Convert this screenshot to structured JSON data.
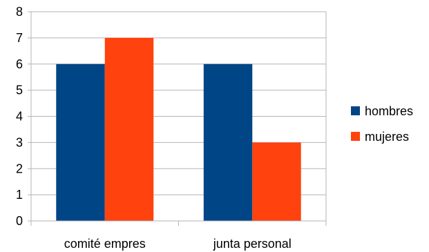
{
  "chart_data": {
    "type": "bar",
    "title": "",
    "xlabel": "",
    "ylabel": "",
    "categories": [
      "comité empres",
      "junta personal"
    ],
    "series": [
      {
        "name": "hombres",
        "values": [
          6,
          6
        ],
        "color": "#004586"
      },
      {
        "name": "mujeres",
        "values": [
          7,
          3
        ],
        "color": "#ff420e"
      }
    ],
    "ylim": [
      0,
      8
    ],
    "yticks": [
      "0",
      "1",
      "2",
      "3",
      "4",
      "5",
      "6",
      "7",
      "8"
    ],
    "grid": true,
    "grid_color": "#b3b3b3",
    "legend_position": "right"
  }
}
